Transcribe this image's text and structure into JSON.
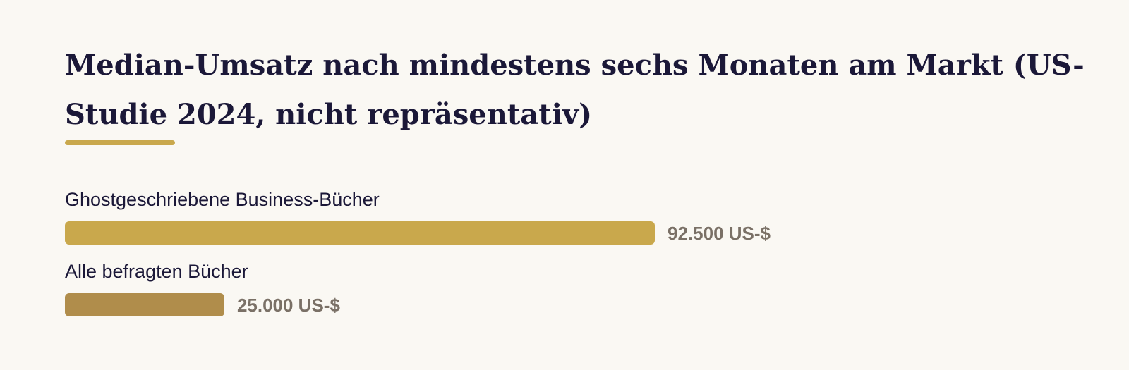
{
  "chart_data": {
    "type": "bar",
    "orientation": "horizontal",
    "title": "Median-Umsatz nach mindestens sechs Monaten am Markt (US-Studie 2024, nicht repräsentativ)",
    "categories": [
      "Ghostgeschriebene Business-Bücher",
      "Alle befragten Bücher"
    ],
    "values": [
      92500,
      25000
    ],
    "value_labels": [
      "92.500 US-$",
      "25.000 US-$"
    ],
    "colors": [
      "#c9a84c",
      "#b08d4b"
    ]
  }
}
